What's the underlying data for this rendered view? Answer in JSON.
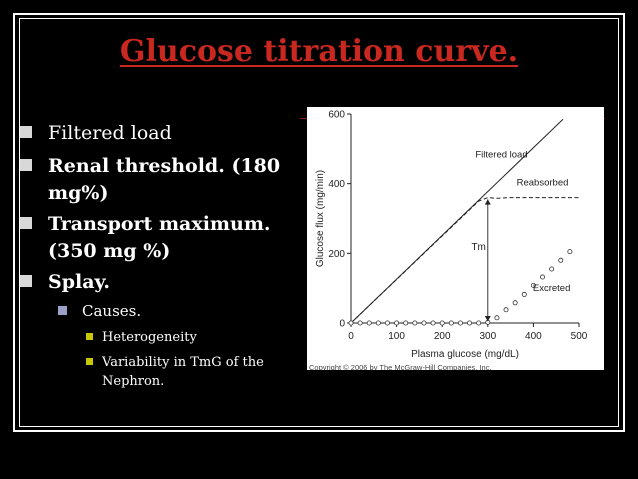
{
  "slide": {
    "title": "Glucose titration curve.",
    "bullets": [
      {
        "text": "Filtered load",
        "bold": false
      },
      {
        "text": "Renal threshold. (180",
        "text2": "mg%)",
        "bold": true
      },
      {
        "text": "Transport maximum.",
        "text2": "(350 mg %)",
        "bold": true
      },
      {
        "text": "Splay.",
        "bold": true
      }
    ],
    "sub_bullet": "Causes.",
    "sub_sub_bullets": [
      "Heterogeneity",
      "Variability in TmG of the",
      "Nephron."
    ],
    "colors": {
      "background": "#000000",
      "title": "#c8281f",
      "text": "#ffffff"
    }
  },
  "chart_data": {
    "type": "line",
    "xlabel": "Plasma glucose (mg/dL)",
    "ylabel": "Glucose flux (mg/min)",
    "xlim": [
      0,
      500
    ],
    "ylim": [
      0,
      600
    ],
    "x_ticks": [
      "0",
      "100",
      "200",
      "300",
      "400",
      "500"
    ],
    "y_ticks": [
      "0",
      "200",
      "400",
      "600"
    ],
    "series": [
      {
        "name": "Filtered load",
        "style": "solid",
        "x": [
          0,
          465
        ],
        "y": [
          0,
          585
        ]
      },
      {
        "name": "Reabsorbed",
        "style": "dashed",
        "x": [
          0,
          280,
          300,
          320,
          350,
          500
        ],
        "y": [
          0,
          350,
          360,
          358,
          360,
          360
        ]
      },
      {
        "name": "Excreted",
        "style": "circles",
        "x": [
          0,
          20,
          40,
          60,
          80,
          100,
          120,
          140,
          160,
          180,
          200,
          220,
          240,
          260,
          280,
          300,
          320,
          340,
          360,
          380,
          400,
          420,
          440,
          460,
          480
        ],
        "y": [
          0,
          0,
          0,
          0,
          0,
          0,
          0,
          0,
          0,
          0,
          0,
          0,
          0,
          0,
          0,
          2,
          15,
          38,
          58,
          82,
          108,
          132,
          155,
          180,
          205
        ]
      }
    ],
    "annotations": [
      "Tm"
    ],
    "copyright": "Copyright © 2006 by The McGraw-Hill Companies, Inc."
  }
}
